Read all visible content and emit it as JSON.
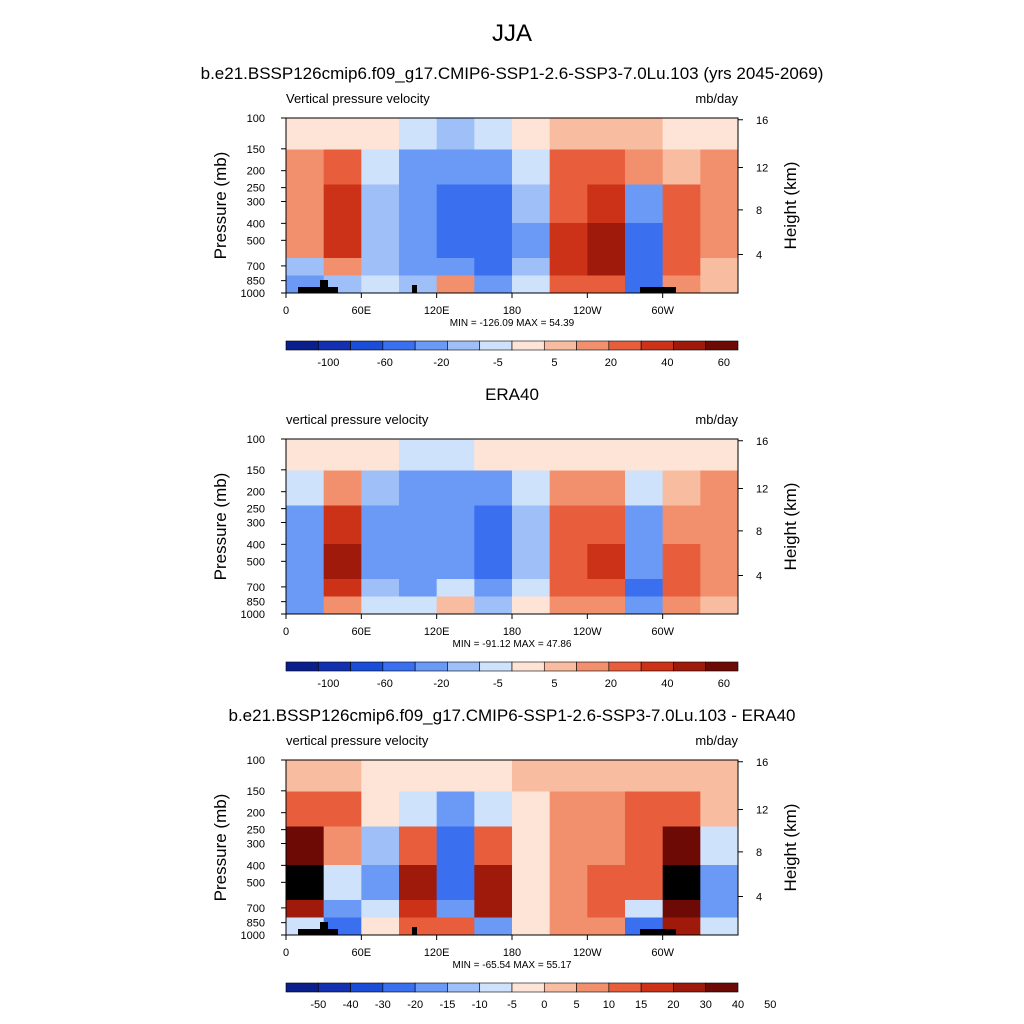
{
  "title": "JJA",
  "colors": {
    "contour_levels_12": [
      "#0a1e8c",
      "#1230b0",
      "#1a4ed8",
      "#3a6ff0",
      "#6a9af5",
      "#9ebff8",
      "#cfe2fb",
      "#fde4d6",
      "#f8bca0",
      "#f2906e",
      "#e85e3c",
      "#cc3218",
      "#a01a0c",
      "#6e0a06"
    ],
    "diff_levels_20": [
      "#0a1e8c",
      "#1230b0",
      "#1a4ed8",
      "#3a6ff0",
      "#6a9af5",
      "#9ebff8",
      "#cfe2fb",
      "#fde4d6",
      "#f8bca0",
      "#f2906e",
      "#e85e3c",
      "#cc3218",
      "#a01a0c",
      "#6e0a06"
    ],
    "topography": "#000000"
  },
  "chart_data": [
    {
      "type": "heatmap",
      "title": "b.e21.BSSP126cmip6.f09_g17.CMIP6-SSP1-2.6-SSP3-7.0Lu.103 (yrs 2045-2069)",
      "left_label": "Vertical pressure velocity",
      "right_label": "mb/day",
      "ylabel": "Pressure (mb)",
      "ylabel_right": "Height (km)",
      "y_ticks": [
        "100",
        "150",
        "200",
        "250",
        "300",
        "400",
        "500",
        "700",
        "850",
        "1000"
      ],
      "y_right_ticks": [
        "16",
        "12",
        "8",
        "4"
      ],
      "x_ticks": [
        "0",
        "60E",
        "120E",
        "180",
        "120W",
        "60W"
      ],
      "stats": "MIN = -126.09  MAX =  54.39",
      "colorbar_labels": [
        "-100",
        "-60",
        "-20",
        "-5",
        "5",
        "20",
        "40",
        "60"
      ],
      "x": [
        "0",
        "30E",
        "60E",
        "90E",
        "120E",
        "150E",
        "180",
        "150W",
        "120W",
        "90W",
        "60W",
        "30W"
      ],
      "y": [
        "100",
        "200",
        "300",
        "500",
        "700",
        "850"
      ],
      "values": [
        [
          0,
          -5,
          -5,
          -10,
          -15,
          -10,
          -3,
          5,
          5,
          5,
          3,
          3
        ],
        [
          10,
          20,
          -10,
          -30,
          -40,
          -40,
          -10,
          20,
          25,
          10,
          5,
          10
        ],
        [
          15,
          30,
          -20,
          -40,
          -50,
          -60,
          -20,
          25,
          30,
          -30,
          20,
          10
        ],
        [
          10,
          35,
          -20,
          -40,
          -50,
          -60,
          -25,
          30,
          40,
          -50,
          25,
          10
        ],
        [
          -20,
          10,
          -20,
          -40,
          -30,
          -50,
          -20,
          30,
          40,
          -60,
          20,
          5
        ],
        [
          -40,
          -20,
          -10,
          -20,
          10,
          -40,
          -10,
          20,
          20,
          -60,
          10,
          5
        ]
      ],
      "value_range": [
        -126.09,
        54.39
      ]
    },
    {
      "type": "heatmap",
      "title": "ERA40",
      "left_label": "vertical pressure velocity",
      "right_label": "mb/day",
      "ylabel": "Pressure (mb)",
      "ylabel_right": "Height (km)",
      "y_ticks": [
        "100",
        "150",
        "200",
        "250",
        "300",
        "400",
        "500",
        "700",
        "850",
        "1000"
      ],
      "y_right_ticks": [
        "16",
        "12",
        "8",
        "4"
      ],
      "x_ticks": [
        "0",
        "60E",
        "120E",
        "180",
        "120W",
        "60W"
      ],
      "stats": "MIN = -91.12  MAX =  47.86",
      "colorbar_labels": [
        "-100",
        "-60",
        "-20",
        "-5",
        "5",
        "20",
        "40",
        "60"
      ],
      "x": [
        "0",
        "30E",
        "60E",
        "90E",
        "120E",
        "150E",
        "180",
        "150W",
        "120W",
        "90W",
        "60W",
        "30W"
      ],
      "y": [
        "100",
        "200",
        "300",
        "500",
        "700",
        "850"
      ],
      "values": [
        [
          -3,
          -5,
          -5,
          -10,
          -10,
          -5,
          -3,
          3,
          3,
          3,
          3,
          3
        ],
        [
          -10,
          10,
          -20,
          -30,
          -30,
          -40,
          -10,
          10,
          15,
          -10,
          5,
          10
        ],
        [
          -30,
          30,
          -30,
          -40,
          -40,
          -50,
          -20,
          20,
          25,
          -30,
          15,
          10
        ],
        [
          -40,
          40,
          -30,
          -40,
          -30,
          -50,
          -20,
          25,
          30,
          -40,
          20,
          10
        ],
        [
          -40,
          30,
          -20,
          -30,
          -10,
          -40,
          -10,
          20,
          25,
          -50,
          25,
          10
        ],
        [
          -30,
          10,
          -10,
          -10,
          5,
          -20,
          -5,
          10,
          10,
          -40,
          10,
          5
        ]
      ],
      "value_range": [
        -91.12,
        47.86
      ]
    },
    {
      "type": "heatmap",
      "title": "b.e21.BSSP126cmip6.f09_g17.CMIP6-SSP1-2.6-SSP3-7.0Lu.103 - ERA40",
      "left_label": "vertical pressure velocity",
      "right_label": "mb/day",
      "ylabel": "Pressure (mb)",
      "ylabel_right": "Height (km)",
      "y_ticks": [
        "100",
        "150",
        "200",
        "250",
        "300",
        "400",
        "500",
        "700",
        "850",
        "1000"
      ],
      "y_right_ticks": [
        "16",
        "12",
        "8",
        "4"
      ],
      "x_ticks": [
        "0",
        "60E",
        "120E",
        "180",
        "120W",
        "60W"
      ],
      "stats": "MIN = -65.54  MAX =  55.17",
      "colorbar_labels": [
        "-50",
        "-40",
        "-30",
        "-20",
        "-15",
        "-10",
        "-5",
        "0",
        "5",
        "10",
        "15",
        "20",
        "30",
        "40",
        "50"
      ],
      "x": [
        "0",
        "30E",
        "60E",
        "90E",
        "120E",
        "150E",
        "180",
        "150W",
        "120W",
        "90W",
        "60W",
        "30W"
      ],
      "y": [
        "100",
        "200",
        "300",
        "500",
        "700",
        "850"
      ],
      "values": [
        [
          3,
          3,
          -3,
          -5,
          -5,
          -3,
          0,
          3,
          3,
          3,
          3,
          0
        ],
        [
          10,
          10,
          -5,
          -10,
          -20,
          -10,
          -5,
          5,
          5,
          10,
          10,
          0
        ],
        [
          30,
          5,
          -15,
          10,
          -30,
          10,
          -5,
          5,
          5,
          10,
          30,
          -10
        ],
        [
          40,
          -10,
          -20,
          20,
          -30,
          20,
          -5,
          5,
          10,
          10,
          40,
          -20
        ],
        [
          20,
          -20,
          -10,
          15,
          -20,
          20,
          -5,
          5,
          10,
          -10,
          30,
          -20
        ],
        [
          -10,
          -30,
          -5,
          10,
          10,
          -20,
          -5,
          5,
          5,
          -30,
          20,
          -10
        ]
      ],
      "value_range": [
        -65.54,
        55.17
      ]
    }
  ]
}
